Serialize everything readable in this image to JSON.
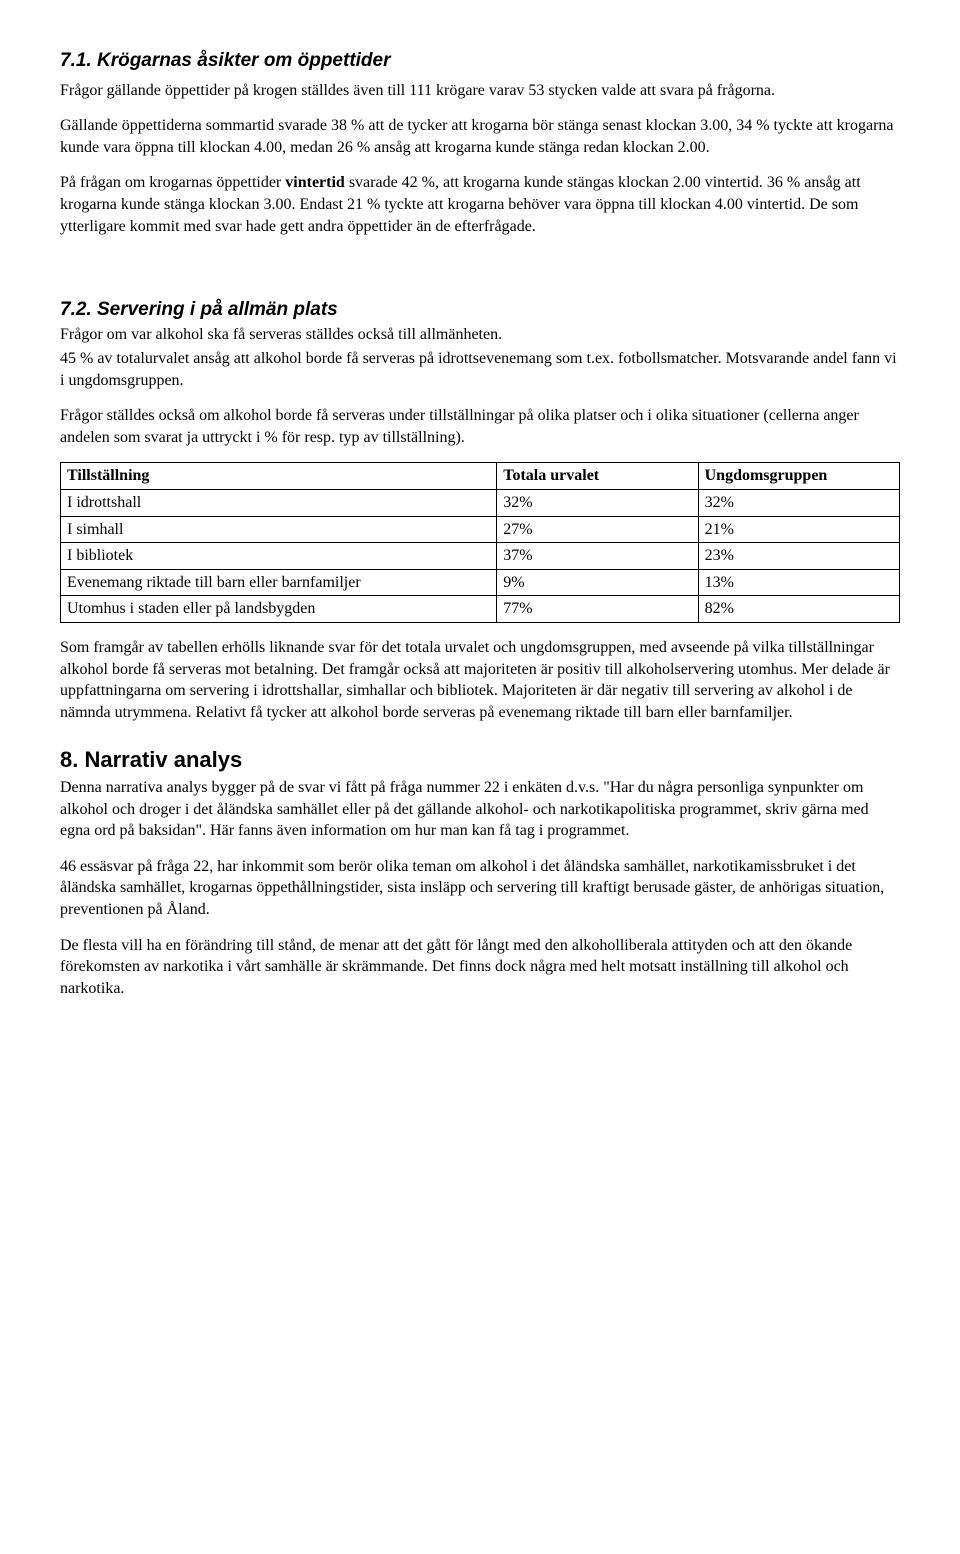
{
  "section71": {
    "heading": "7.1. Krögarnas åsikter om öppettider",
    "p1": "Frågor gällande öppettider på krogen ställdes även till 111 krögare varav 53 stycken valde att svara på frågorna.",
    "p2": "Gällande öppettiderna sommartid svarade 38 % att de tycker att krogarna bör stänga senast klockan 3.00, 34 % tyckte att krogarna kunde vara öppna till klockan 4.00, medan 26 % ansåg att krogarna kunde stänga redan klockan 2.00.",
    "p3_a": "På frågan om krogarnas öppettider ",
    "p3_b": "vintertid",
    "p3_c": " svarade 42 %, att krogarna kunde stängas klockan 2.00 vintertid. 36 % ansåg att krogarna kunde stänga klockan 3.00. Endast 21 % tyckte att krogarna behöver vara öppna till klockan 4.00 vintertid. De som ytterligare kommit med svar hade gett andra öppettider än de efterfrågade."
  },
  "section72": {
    "heading": "7.2. Servering i på allmän plats",
    "p1": "Frågor om var alkohol ska få serveras ställdes också till allmänheten.",
    "p2": "45 % av totalurvalet ansåg att alkohol borde få serveras på idrottsevenemang som t.ex. fotbollsmatcher. Motsvarande andel fann vi i ungdomsgruppen.",
    "p3": "Frågor ställdes också om alkohol borde få serveras under tillställningar på olika platser och i olika situationer (cellerna anger andelen som svarat ja uttryckt i % för resp. typ av tillställning)."
  },
  "table": {
    "headers": [
      "Tillställning",
      "Totala urvalet",
      "Ungdomsgruppen"
    ],
    "rows": [
      [
        "I idrottshall",
        "32%",
        "32%"
      ],
      [
        "I simhall",
        "27%",
        "21%"
      ],
      [
        "I bibliotek",
        "37%",
        "23%"
      ],
      [
        "Evenemang riktade till barn eller barnfamiljer",
        "9%",
        "13%"
      ],
      [
        "Utomhus i staden eller på landsbygden",
        "77%",
        "82%"
      ]
    ]
  },
  "after_table": {
    "p1": "Som framgår av tabellen erhölls liknande svar för det totala urvalet och ungdomsgruppen, med avseende på vilka tillställningar alkohol borde få serveras mot betalning. Det framgår också att majoriteten är positiv till alkoholservering utomhus. Mer delade är uppfattningarna om servering i idrottshallar, simhallar och bibliotek. Majoriteten är där negativ till servering av alkohol i de nämnda utrymmena. Relativt få tycker att alkohol borde serveras på evenemang riktade till barn eller barnfamiljer."
  },
  "section8": {
    "heading": "8. Narrativ analys",
    "p1": "Denna narrativa analys bygger på de svar vi fått på fråga nummer 22 i enkäten d.v.s. \"Har du några personliga synpunkter om alkohol och droger i det åländska samhället eller på det gällande alkohol- och narkotikapolitiska programmet, skriv gärna med egna ord på baksidan\". Här fanns även information om hur man kan få tag i programmet.",
    "p2": "46 essäsvar på fråga 22, har inkommit som berör olika teman om alkohol i det åländska samhället, narkotikamissbruket i det åländska samhället, krogarnas öppethållningstider, sista insläpp och servering till kraftigt berusade gäster, de anhörigas situation, preventionen på Åland.",
    "p3": "De flesta vill ha en förändring till stånd, de menar att det gått för långt med den alkoholliberala attityden och att den ökande förekomsten av narkotika i vårt samhälle är skrämmande. Det finns dock några med helt motsatt inställning till alkohol och narkotika."
  }
}
